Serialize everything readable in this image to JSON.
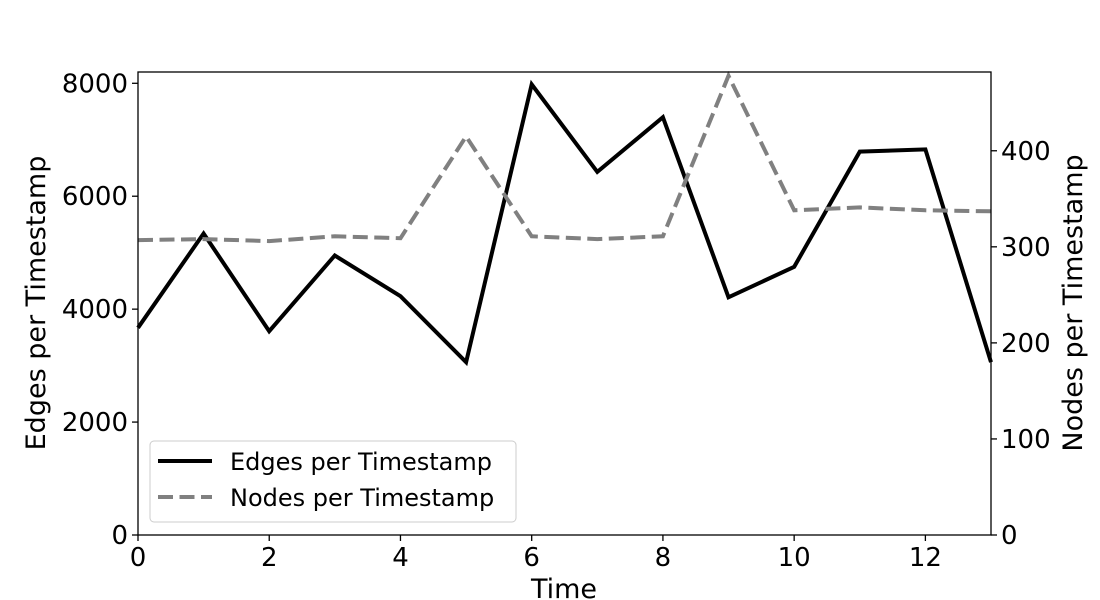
{
  "chart_data": {
    "type": "line",
    "xlabel": "Time",
    "ylabel_left": "Edges per Timestamp",
    "ylabel_right": "Nodes per Timestamp",
    "xlim": [
      0,
      13
    ],
    "ylim_left": [
      0,
      8200
    ],
    "ylim_right": [
      0,
      482
    ],
    "x_ticks": [
      0,
      2,
      4,
      6,
      8,
      10,
      12
    ],
    "y_ticks_left": [
      0,
      2000,
      4000,
      6000,
      8000
    ],
    "y_ticks_right": [
      0,
      100,
      200,
      300,
      400
    ],
    "x": [
      0,
      1,
      2,
      3,
      4,
      5,
      6,
      7,
      8,
      9,
      10,
      11,
      12,
      13
    ],
    "series": [
      {
        "name": "Edges per Timestamp",
        "axis": "left",
        "color": "#000000",
        "style": "solid",
        "values": [
          3670,
          5340,
          3610,
          4950,
          4230,
          3060,
          7980,
          6430,
          7400,
          4210,
          4750,
          6790,
          6830,
          3060
        ]
      },
      {
        "name": "Nodes per Timestamp",
        "axis": "right",
        "color": "#808080",
        "style": "dashed",
        "values": [
          307,
          308,
          306,
          311,
          309,
          415,
          311,
          308,
          311,
          478,
          338,
          341,
          338,
          337
        ]
      }
    ],
    "legend_position": "lower-left",
    "grid": false
  }
}
